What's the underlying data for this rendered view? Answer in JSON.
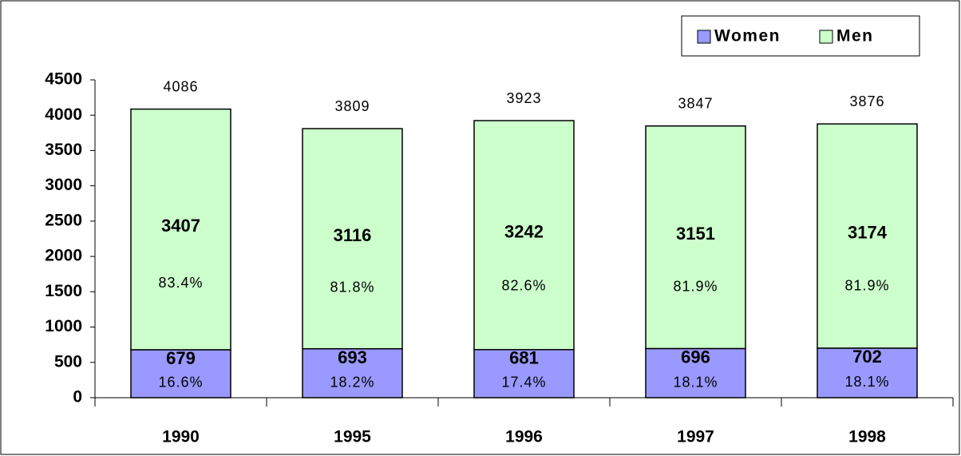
{
  "chart_data": {
    "type": "stacked_bar",
    "categories": [
      "1990",
      "1995",
      "1996",
      "1997",
      "1998"
    ],
    "series": [
      {
        "name": "Women",
        "color": "#9999ff",
        "values": [
          679,
          693,
          681,
          696,
          702
        ],
        "share_labels": [
          "16.6%",
          "18.2%",
          "17.4%",
          "18.1%",
          "18.1%"
        ]
      },
      {
        "name": "Men",
        "color": "#ccffcc",
        "values": [
          3407,
          3116,
          3242,
          3151,
          3174
        ],
        "share_labels": [
          "83.4%",
          "81.8%",
          "82.6%",
          "81.9%",
          "81.9%"
        ]
      }
    ],
    "totals": [
      4086,
      3809,
      3923,
      3847,
      3876
    ],
    "ylim": [
      0,
      4500
    ],
    "yticks": [
      0,
      500,
      1000,
      1500,
      2000,
      2500,
      3000,
      3500,
      4000,
      4500
    ],
    "grid": false,
    "legend": "top-right"
  }
}
